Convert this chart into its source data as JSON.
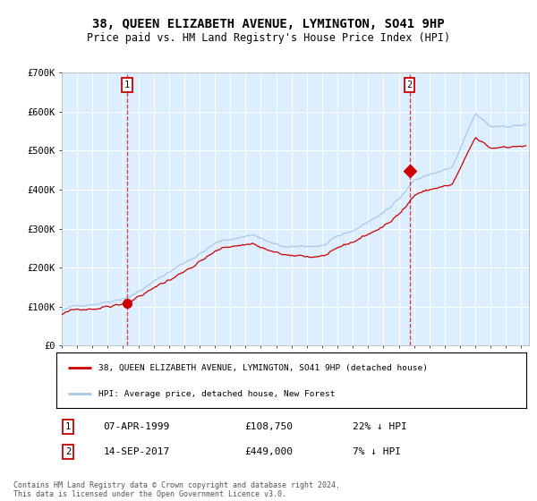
{
  "title": "38, QUEEN ELIZABETH AVENUE, LYMINGTON, SO41 9HP",
  "subtitle": "Price paid vs. HM Land Registry's House Price Index (HPI)",
  "legend_line1": "38, QUEEN ELIZABETH AVENUE, LYMINGTON, SO41 9HP (detached house)",
  "legend_line2": "HPI: Average price, detached house, New Forest",
  "annotation1_date": "07-APR-1999",
  "annotation1_price": "£108,750",
  "annotation1_hpi": "22% ↓ HPI",
  "annotation1_year": 1999.27,
  "annotation1_value": 108750,
  "annotation2_date": "14-SEP-2017",
  "annotation2_price": "£449,000",
  "annotation2_hpi": "7% ↓ HPI",
  "annotation2_year": 2017.71,
  "annotation2_value": 449000,
  "hpi_color": "#a8c8e8",
  "price_color": "#cc0000",
  "plot_bg_color": "#ddeeff",
  "footer": "Contains HM Land Registry data © Crown copyright and database right 2024.\nThis data is licensed under the Open Government Licence v3.0.",
  "ylim": [
    0,
    700000
  ],
  "yticks": [
    0,
    100000,
    200000,
    300000,
    400000,
    500000,
    600000,
    700000
  ],
  "ytick_labels": [
    "£0",
    "£100K",
    "£200K",
    "£300K",
    "£400K",
    "£500K",
    "£600K",
    "£700K"
  ],
  "xlim_start": 1995.0,
  "xlim_end": 2025.5
}
